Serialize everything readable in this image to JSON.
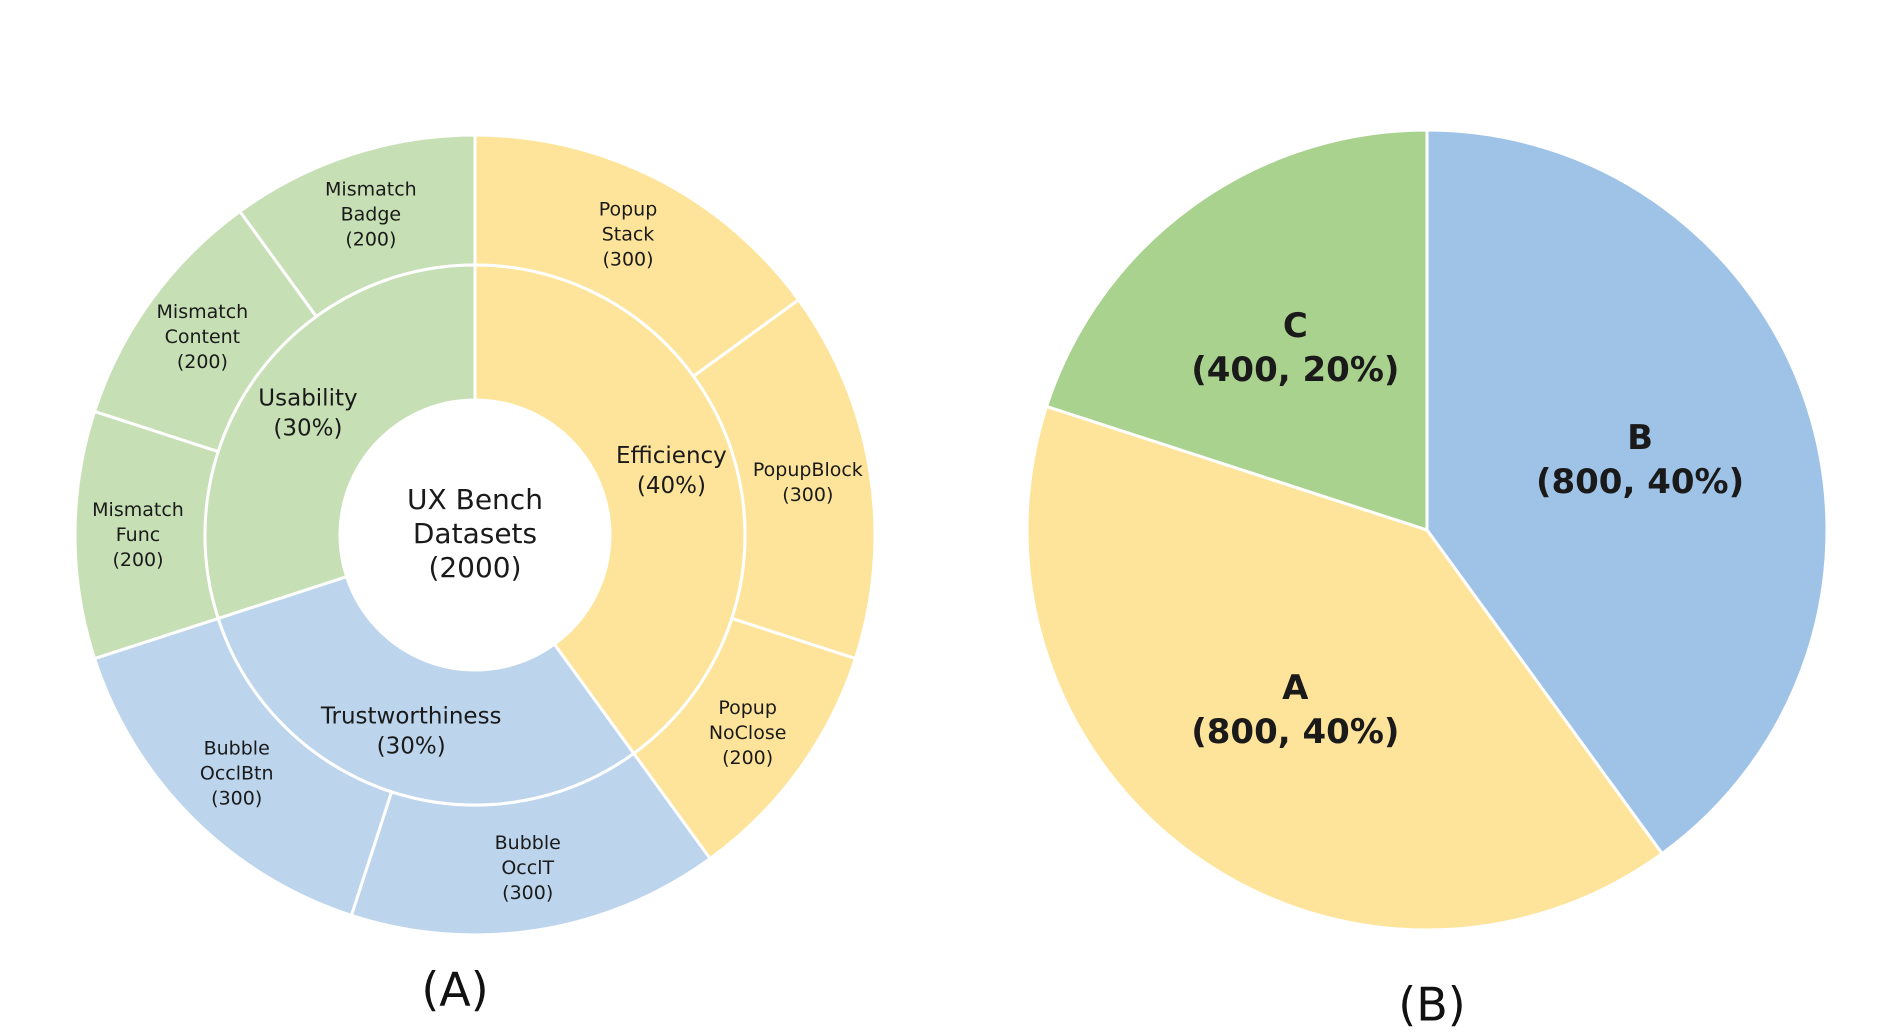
{
  "colors": {
    "usability": "#c6dfb4",
    "efficiency": "#fde49a",
    "trustworthiness": "#bcd4ec",
    "pieA": "#fde49a",
    "pieB": "#9fc3e6",
    "pieC": "#a9d28e",
    "stroke": "#ffffff"
  },
  "chart_data": [
    {
      "type": "sunburst",
      "center": {
        "line1": "UX Bench",
        "line2": "Datasets",
        "line3": "(2000)"
      },
      "total": 2000,
      "inner": [
        {
          "id": "efficiency",
          "l1": "Efficiency",
          "l2": "(40%)",
          "value": 800
        },
        {
          "id": "trustworthiness",
          "l1": "Trustworthiness",
          "l2": "(30%)",
          "value": 600
        },
        {
          "id": "usability",
          "l1": "Usability",
          "l2": "(30%)",
          "value": 600
        }
      ],
      "outer": [
        {
          "parent": "efficiency",
          "lines": [
            "Popup",
            "Stack",
            "(300)"
          ],
          "value": 300
        },
        {
          "parent": "efficiency",
          "lines": [
            "PopupBlock",
            "(300)"
          ],
          "value": 300
        },
        {
          "parent": "efficiency",
          "lines": [
            "Popup",
            "NoClose",
            "(200)"
          ],
          "value": 200
        },
        {
          "parent": "trustworthiness",
          "lines": [
            "Bubble",
            "OcclT",
            "(300)"
          ],
          "value": 300
        },
        {
          "parent": "trustworthiness",
          "lines": [
            "Bubble",
            "OcclBtn",
            "(300)"
          ],
          "value": 300
        },
        {
          "parent": "usability",
          "lines": [
            "Mismatch",
            "Func",
            "(200)"
          ],
          "value": 200
        },
        {
          "parent": "usability",
          "lines": [
            "Mismatch",
            "Content",
            "(200)"
          ],
          "value": 200
        },
        {
          "parent": "usability",
          "lines": [
            "Mismatch",
            "Badge",
            "(200)"
          ],
          "value": 200
        }
      ],
      "caption": "(A)"
    },
    {
      "type": "pie",
      "slices": [
        {
          "id": "B",
          "letter": "B",
          "detail": "(800, 40%)",
          "value": 800
        },
        {
          "id": "A",
          "letter": "A",
          "detail": "(800, 40%)",
          "value": 800
        },
        {
          "id": "C",
          "letter": "C",
          "detail": "(400, 20%)",
          "value": 400
        }
      ],
      "caption": "(B)"
    }
  ],
  "captions": {
    "a": "(A)",
    "b": "(B)"
  }
}
